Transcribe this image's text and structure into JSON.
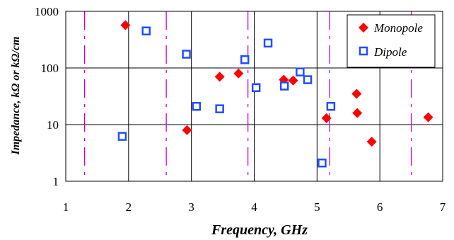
{
  "chart_data": {
    "type": "scatter",
    "xlabel": "Frequency, GHz",
    "ylabel": "Impedance, kΩ or kΩ/cm",
    "xlim": [
      1,
      7
    ],
    "ylim": [
      1,
      1000
    ],
    "yscale": "log",
    "x_ticks": [
      "1",
      "2",
      "3",
      "4",
      "5",
      "6",
      "7"
    ],
    "y_ticks": [
      "1",
      "10",
      "100",
      "1000"
    ],
    "grid": "major-x and major-y",
    "legend_position": "top-right",
    "reference_lines_x": [
      1.3,
      2.6,
      3.9,
      5.2,
      6.5
    ],
    "colors": {
      "monopole": "#ff0000",
      "dipole": "#1f4fff",
      "reference_lines": "#cc00cc",
      "grid": "#000000"
    },
    "series": [
      {
        "name": "Monopole",
        "marker": "diamond",
        "points": [
          {
            "x": 1.95,
            "y": 570
          },
          {
            "x": 2.93,
            "y": 8
          },
          {
            "x": 3.45,
            "y": 70
          },
          {
            "x": 3.75,
            "y": 80
          },
          {
            "x": 4.47,
            "y": 62
          },
          {
            "x": 4.62,
            "y": 60
          },
          {
            "x": 5.15,
            "y": 13
          },
          {
            "x": 5.63,
            "y": 35
          },
          {
            "x": 5.64,
            "y": 16
          },
          {
            "x": 5.87,
            "y": 5
          },
          {
            "x": 6.77,
            "y": 13.5
          }
        ]
      },
      {
        "name": "Dipole",
        "marker": "open-square",
        "points": [
          {
            "x": 1.9,
            "y": 6.2
          },
          {
            "x": 2.28,
            "y": 450
          },
          {
            "x": 2.92,
            "y": 175
          },
          {
            "x": 3.08,
            "y": 21
          },
          {
            "x": 3.45,
            "y": 19
          },
          {
            "x": 3.85,
            "y": 140
          },
          {
            "x": 4.03,
            "y": 45
          },
          {
            "x": 4.22,
            "y": 275
          },
          {
            "x": 4.48,
            "y": 48
          },
          {
            "x": 4.73,
            "y": 85
          },
          {
            "x": 4.85,
            "y": 62
          },
          {
            "x": 5.08,
            "y": 2.1
          },
          {
            "x": 5.22,
            "y": 21
          }
        ]
      }
    ]
  }
}
